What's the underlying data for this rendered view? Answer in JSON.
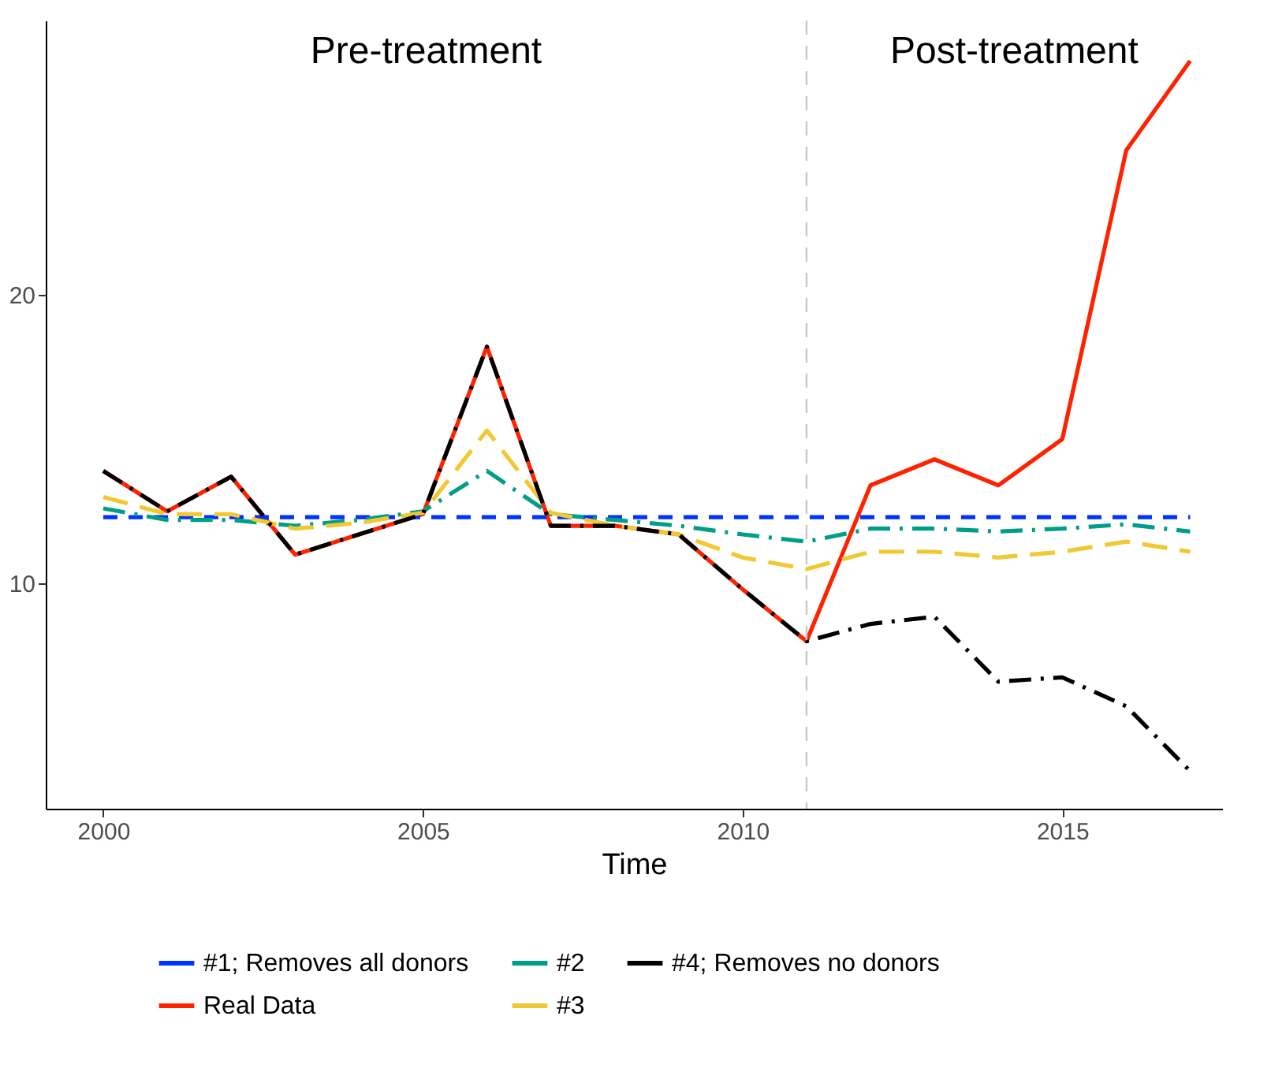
{
  "chart_data": {
    "type": "line",
    "xlabel": "Time",
    "x": [
      2000,
      2001,
      2002,
      2003,
      2004,
      2005,
      2006,
      2007,
      2008,
      2009,
      2010,
      2011,
      2012,
      2013,
      2014,
      2015,
      2016,
      2017
    ],
    "series": [
      {
        "name": "#1; Removes all donors",
        "color": "#0033ff",
        "line_style": "dashed",
        "values": [
          12.3,
          12.3,
          12.3,
          12.3,
          12.3,
          12.3,
          12.3,
          12.3,
          12.3,
          12.3,
          12.3,
          12.3,
          12.3,
          12.3,
          12.3,
          12.3,
          12.3,
          12.3
        ]
      },
      {
        "name": "Real Data",
        "color": "#ff2200",
        "line_style": "solid",
        "values": [
          13.9,
          12.5,
          13.7,
          11.0,
          11.7,
          12.4,
          18.2,
          12.0,
          12.0,
          11.7,
          9.8,
          8.0,
          13.4,
          14.3,
          13.4,
          15.0,
          25.0,
          28.1
        ]
      },
      {
        "name": "#2",
        "color": "#009e87",
        "line_style": "dashdot",
        "values": [
          12.6,
          12.2,
          12.2,
          12.0,
          12.2,
          12.5,
          13.9,
          12.4,
          12.2,
          12.0,
          11.7,
          11.45,
          11.9,
          11.9,
          11.8,
          11.9,
          12.05,
          11.8
        ]
      },
      {
        "name": "#3",
        "color": "#f0c832",
        "line_style": "longdash",
        "values": [
          13.0,
          12.4,
          12.4,
          11.9,
          12.1,
          12.45,
          15.3,
          12.45,
          12.0,
          11.7,
          10.9,
          10.5,
          11.1,
          11.1,
          10.9,
          11.1,
          11.45,
          11.1
        ]
      },
      {
        "name": "#4; Removes no donors",
        "color": "#000000",
        "line_style": "dashdot",
        "values": [
          13.9,
          12.5,
          13.7,
          11.0,
          11.7,
          12.4,
          18.2,
          12.0,
          12.0,
          11.7,
          9.8,
          8.0,
          8.6,
          8.85,
          6.6,
          6.75,
          5.75,
          3.5
        ]
      }
    ],
    "xlim": [
      1999.1,
      2017.5
    ],
    "xticks": [
      2000,
      2005,
      2010,
      2015
    ],
    "ylim": [
      2.2,
      29.5
    ],
    "yticks": [
      10,
      20
    ],
    "ref_lines": [
      {
        "axis": "x",
        "value": 2011,
        "color": "#c8c8c8",
        "line_style": "dashed"
      }
    ],
    "annotations": [
      "Pre-treatment",
      "Post-treatment"
    ],
    "grid": false,
    "legend": "bottom"
  }
}
